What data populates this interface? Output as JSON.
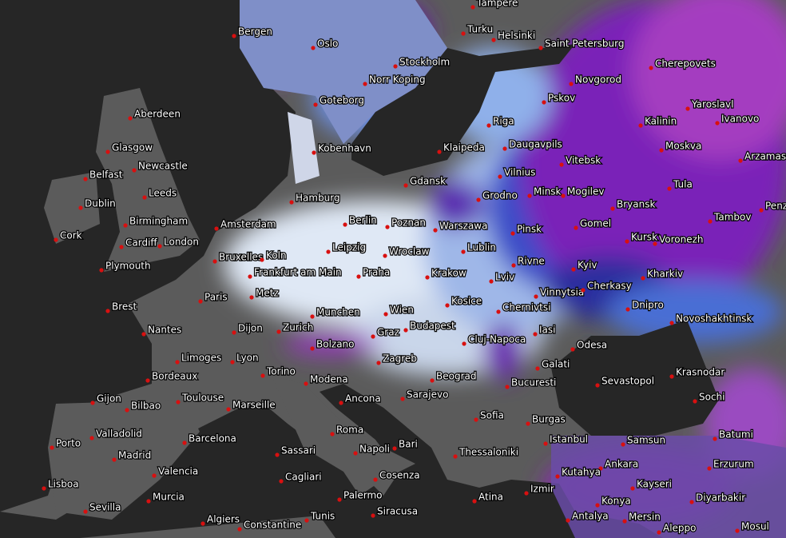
{
  "map": {
    "cities": [
      "Tampere",
      "Bergen",
      "Oslo",
      "Turku",
      "Helsinki",
      "Saint Petersburg",
      "Stockholm",
      "Norr Koping",
      "Goteborg",
      "Aberdeen",
      "Glasgow",
      "Newcastle",
      "Belfast",
      "Dublin",
      "Leeds",
      "Birmingham",
      "Cork",
      "Cardiff",
      "London",
      "Plymouth",
      "Kobenhavn",
      "Hamburg",
      "Berlin",
      "Poznan",
      "Amsterdam",
      "Leipzig",
      "Wroclaw",
      "Bruxelles",
      "Koln",
      "Frankfurt am Main",
      "Praha",
      "Krakow",
      "Paris",
      "Metz",
      "Munchen",
      "Wien",
      "Kosice",
      "Brest",
      "Nantes",
      "Dijon",
      "Zurich",
      "Budapest",
      "Graz",
      "Limoges",
      "Lyon",
      "Bolzano",
      "Zagreb",
      "Cluj-Napoca",
      "Bordeaux",
      "Torino",
      "Modena",
      "Beograd",
      "Sarajevo",
      "Bucuresti",
      "Toulouse",
      "Marseille",
      "Ancona",
      "Sofia",
      "Burgas",
      "Gijon",
      "Bilbao",
      "Valladolid",
      "Barcelona",
      "Roma",
      "Bari",
      "Porto",
      "Madrid",
      "Napoli",
      "Sassari",
      "Thessaloniki",
      "Istanbul",
      "Valencia",
      "Cagliari",
      "Cosenza",
      "Lisboa",
      "Murcia",
      "Sevilla",
      "Palermo",
      "Siracusa",
      "Algiers",
      "Constantine",
      "Tunis",
      "Atina",
      "Riga",
      "Pskov",
      "Novgorod",
      "Klaipeda",
      "Daugavpils",
      "Vilnius",
      "Gdansk",
      "Grodno",
      "Minsk",
      "Mogilev",
      "Vitebsk",
      "Warszawa",
      "Lublin",
      "Pinsk",
      "Rivne",
      "Lviv",
      "Kyiv",
      "Vinnytsia",
      "Cherkasy",
      "Chernivtsi",
      "Iasi",
      "Odesa",
      "Galati",
      "Sevastopol",
      "Dnipro",
      "Kharkiv",
      "Kursk",
      "Voronezh",
      "Bryansk",
      "Gomel",
      "Tula",
      "Moskva",
      "Kalinin",
      "Yaroslavl",
      "Ivanovo",
      "Cherepovets",
      "Arzamas",
      "Tambov",
      "Penza",
      "Novoshakhtinsk",
      "Krasnodar",
      "Sochi",
      "Batumi",
      "Samsun",
      "Ankara",
      "Erzurum",
      "Kutahya",
      "Kayseri",
      "Konya",
      "Izmir",
      "Diyarbakir",
      "Antalya",
      "Mersin",
      "Aleppo",
      "Mosul"
    ]
  }
}
